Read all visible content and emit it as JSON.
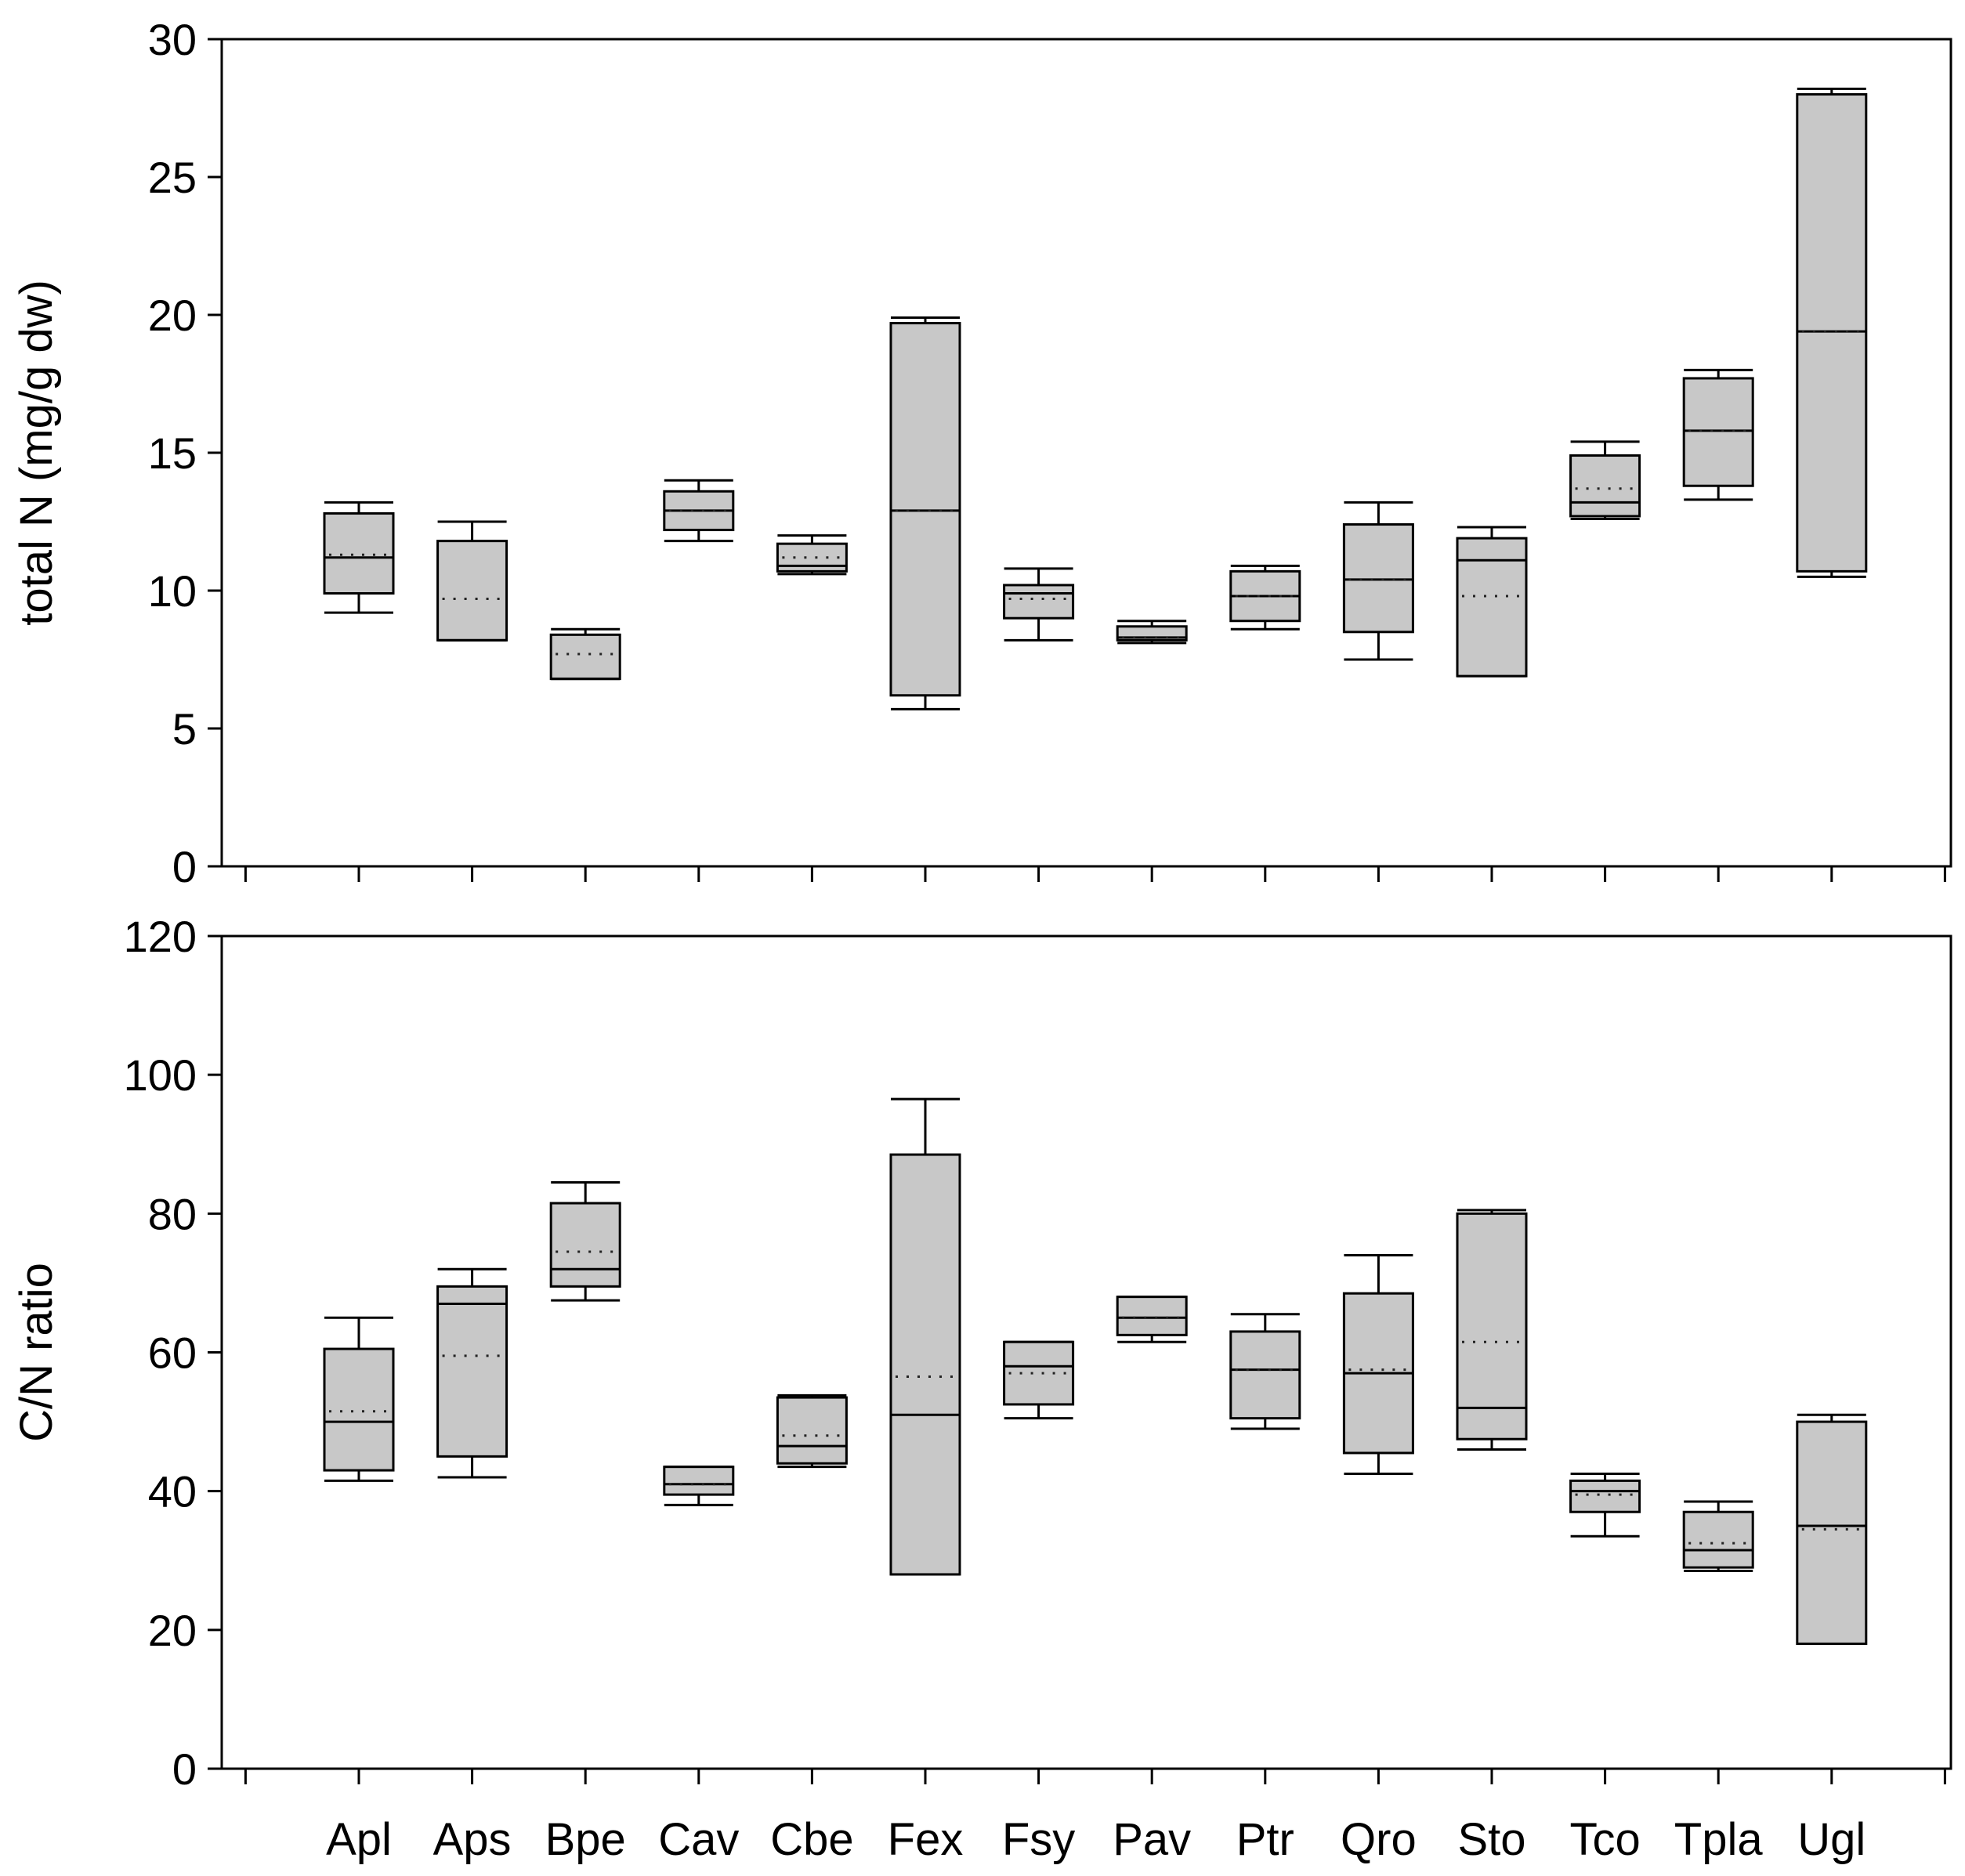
{
  "chart_data": [
    {
      "type": "box",
      "title": "",
      "xlabel": "",
      "ylabel": "total N (mg/g dw)",
      "ylim": [
        0,
        30
      ],
      "yticks": [
        "0",
        "5",
        "10",
        "15",
        "20",
        "25",
        "30"
      ],
      "grid": false,
      "box_fill": "#c8c8c8",
      "categories": [
        "Apl",
        "Aps",
        "Bpe",
        "Cav",
        "Cbe",
        "Fex",
        "Fsy",
        "Pav",
        "Ptr",
        "Qro",
        "Sto",
        "Tco",
        "Tpla",
        "Ugl"
      ],
      "boxes": [
        {
          "name": "Apl",
          "min": 9.2,
          "q1": 9.9,
          "median": 11.2,
          "q3": 12.8,
          "max": 13.2,
          "mean": 11.3
        },
        {
          "name": "Aps",
          "min": 8.2,
          "q1": 8.2,
          "median": 8.2,
          "q3": 11.8,
          "max": 12.5,
          "mean": 9.7
        },
        {
          "name": "Bpe",
          "min": 6.8,
          "q1": 6.8,
          "median": 6.8,
          "q3": 8.4,
          "max": 8.6,
          "mean": 7.7
        },
        {
          "name": "Cav",
          "min": 11.8,
          "q1": 12.2,
          "median": 12.9,
          "q3": 13.6,
          "max": 14.0,
          "mean": 12.9
        },
        {
          "name": "Cbe",
          "min": 10.6,
          "q1": 10.7,
          "median": 10.9,
          "q3": 11.7,
          "max": 12.0,
          "mean": 11.2
        },
        {
          "name": "Fex",
          "min": 5.7,
          "q1": 6.2,
          "median": 12.9,
          "q3": 19.7,
          "max": 19.9,
          "mean": 12.9
        },
        {
          "name": "Fsy",
          "min": 8.2,
          "q1": 9.0,
          "median": 9.9,
          "q3": 10.2,
          "max": 10.8,
          "mean": 9.7
        },
        {
          "name": "Pav",
          "min": 8.1,
          "q1": 8.2,
          "median": 8.3,
          "q3": 8.7,
          "max": 8.9,
          "mean": 8.3
        },
        {
          "name": "Ptr",
          "min": 8.6,
          "q1": 8.9,
          "median": 9.8,
          "q3": 10.7,
          "max": 10.9,
          "mean": 9.8
        },
        {
          "name": "Qro",
          "min": 7.5,
          "q1": 8.5,
          "median": 10.4,
          "q3": 12.4,
          "max": 13.2,
          "mean": 10.4
        },
        {
          "name": "Sto",
          "min": 6.9,
          "q1": 6.9,
          "median": 11.1,
          "q3": 11.9,
          "max": 12.3,
          "mean": 9.8
        },
        {
          "name": "Tco",
          "min": 12.6,
          "q1": 12.7,
          "median": 13.2,
          "q3": 14.9,
          "max": 15.4,
          "mean": 13.7
        },
        {
          "name": "Tpla",
          "min": 13.3,
          "q1": 13.8,
          "median": 15.8,
          "q3": 17.7,
          "max": 18.0,
          "mean": 15.8
        },
        {
          "name": "Ugl",
          "min": 10.5,
          "q1": 10.7,
          "median": 19.4,
          "q3": 28.0,
          "max": 28.2,
          "mean": 19.4
        }
      ]
    },
    {
      "type": "box",
      "title": "",
      "xlabel": "",
      "ylabel": "C/N ratio",
      "ylim": [
        0,
        120
      ],
      "yticks": [
        "0",
        "20",
        "40",
        "60",
        "80",
        "100",
        "120"
      ],
      "grid": false,
      "box_fill": "#c8c8c8",
      "categories": [
        "Apl",
        "Aps",
        "Bpe",
        "Cav",
        "Cbe",
        "Fex",
        "Fsy",
        "Pav",
        "Ptr",
        "Qro",
        "Sto",
        "Tco",
        "Tpla",
        "Ugl"
      ],
      "boxes": [
        {
          "name": "Apl",
          "min": 41.5,
          "q1": 43.0,
          "median": 50.0,
          "q3": 60.5,
          "max": 65.0,
          "mean": 51.5
        },
        {
          "name": "Aps",
          "min": 42.0,
          "q1": 45.0,
          "median": 67.0,
          "q3": 69.5,
          "max": 72.0,
          "mean": 59.5
        },
        {
          "name": "Bpe",
          "min": 67.5,
          "q1": 69.5,
          "median": 72.0,
          "q3": 81.5,
          "max": 84.5,
          "mean": 74.5
        },
        {
          "name": "Cav",
          "min": 38.0,
          "q1": 39.5,
          "median": 41.0,
          "q3": 43.5,
          "max": 43.5,
          "mean": 41.0
        },
        {
          "name": "Cbe",
          "min": 43.5,
          "q1": 44.0,
          "median": 46.5,
          "q3": 53.5,
          "max": 53.8,
          "mean": 48.0
        },
        {
          "name": "Fex",
          "min": 28.0,
          "q1": 28.0,
          "median": 51.0,
          "q3": 88.5,
          "max": 96.5,
          "mean": 56.5
        },
        {
          "name": "Fsy",
          "min": 50.5,
          "q1": 52.5,
          "median": 58.0,
          "q3": 61.5,
          "max": 61.5,
          "mean": 57.0
        },
        {
          "name": "Pav",
          "min": 61.5,
          "q1": 62.5,
          "median": 65.0,
          "q3": 68.0,
          "max": 68.0,
          "mean": 65.0
        },
        {
          "name": "Ptr",
          "min": 49.0,
          "q1": 50.5,
          "median": 57.5,
          "q3": 63.0,
          "max": 65.5,
          "mean": 57.5
        },
        {
          "name": "Qro",
          "min": 42.5,
          "q1": 45.5,
          "median": 57.0,
          "q3": 68.5,
          "max": 74.0,
          "mean": 57.5
        },
        {
          "name": "Sto",
          "min": 46.0,
          "q1": 47.5,
          "median": 52.0,
          "q3": 80.0,
          "max": 80.5,
          "mean": 61.5
        },
        {
          "name": "Tco",
          "min": 33.5,
          "q1": 37.0,
          "median": 40.0,
          "q3": 41.5,
          "max": 42.5,
          "mean": 39.5
        },
        {
          "name": "Tpla",
          "min": 28.5,
          "q1": 29.0,
          "median": 31.5,
          "q3": 37.0,
          "max": 38.5,
          "mean": 32.5
        },
        {
          "name": "Ugl",
          "min": 18.0,
          "q1": 18.0,
          "median": 35.0,
          "q3": 50.0,
          "max": 51.0,
          "mean": 34.5
        }
      ]
    }
  ]
}
